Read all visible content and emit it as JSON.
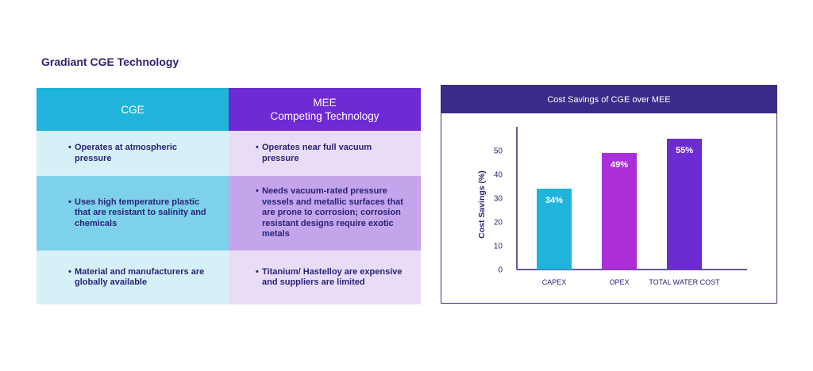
{
  "title": "Gradiant CGE Technology",
  "table": {
    "headers": {
      "cge": "CGE",
      "mee_line1": "MEE",
      "mee_line2": "Competing Technology"
    },
    "rows": [
      {
        "cge": "Operates at atmospheric pressure",
        "mee": "Operates near full vacuum pressure"
      },
      {
        "cge": "Uses high temperature plastic that are resistant to salinity and chemicals",
        "mee": "Needs vacuum-rated pressure vessels and metallic surfaces that are prone to corrosion; corrosion resistant designs require exotic metals"
      },
      {
        "cge": "Material and manufacturers are globally available",
        "mee": "Titanium/ Hastelloy are expensive and suppliers are limited"
      }
    ],
    "colors": {
      "cge_header": "#20b4dc",
      "mee_header": "#6f2ad4"
    }
  },
  "chart_data": {
    "type": "bar",
    "title": "Cost Savings of CGE over MEE",
    "categories": [
      "CAPEX",
      "OPEX",
      "TOTAL WATER COST"
    ],
    "values": [
      34,
      49,
      55
    ],
    "data_labels": [
      "34%",
      "49%",
      "55%"
    ],
    "colors": [
      "#20b4dc",
      "#ab2ed6",
      "#6d2bd2"
    ],
    "xlabel": "",
    "ylabel": "Cost Savings (%)",
    "ylim": [
      0,
      60
    ],
    "yticks": [
      "0",
      "10",
      "20",
      "30",
      "40",
      "50"
    ],
    "grid": false
  }
}
